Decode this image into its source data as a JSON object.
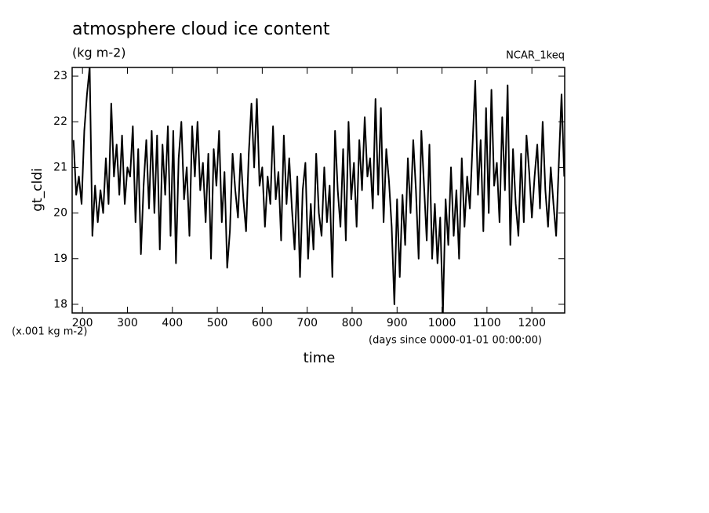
{
  "chart_data": {
    "type": "line",
    "title": "atmosphere cloud ice content",
    "subtitle": "(kg m-2)",
    "annotation": "NCAR_1keq",
    "y_label": "gt_cldi",
    "y_unit": "(x.001 kg m-2)",
    "x_label": "time",
    "x_unit": "(days since 0000-01-01 00:00:00)",
    "xlim": [
      177,
      1273
    ],
    "ylim": [
      17.81,
      23.19
    ],
    "xticks": [
      200,
      300,
      400,
      500,
      600,
      700,
      800,
      900,
      1000,
      1100,
      1200
    ],
    "yticks": [
      18,
      19,
      20,
      21,
      22,
      23
    ],
    "color": "#000000",
    "x": [
      180,
      186,
      192,
      198,
      204,
      210,
      216,
      222,
      228,
      234,
      240,
      246,
      252,
      258,
      264,
      270,
      276,
      282,
      288,
      294,
      300,
      306,
      312,
      318,
      324,
      330,
      336,
      342,
      348,
      354,
      360,
      366,
      372,
      378,
      384,
      390,
      396,
      402,
      408,
      414,
      420,
      426,
      432,
      438,
      444,
      450,
      456,
      462,
      468,
      474,
      480,
      486,
      492,
      498,
      504,
      510,
      516,
      522,
      528,
      534,
      540,
      546,
      552,
      558,
      564,
      570,
      576,
      582,
      588,
      594,
      600,
      606,
      612,
      618,
      624,
      630,
      636,
      642,
      648,
      654,
      660,
      666,
      672,
      678,
      684,
      690,
      696,
      702,
      708,
      714,
      720,
      726,
      732,
      738,
      744,
      750,
      756,
      762,
      768,
      774,
      780,
      786,
      792,
      798,
      804,
      810,
      816,
      822,
      828,
      834,
      840,
      846,
      852,
      858,
      864,
      870,
      876,
      882,
      888,
      894,
      900,
      906,
      912,
      918,
      924,
      930,
      936,
      942,
      948,
      954,
      960,
      966,
      972,
      978,
      984,
      990,
      996,
      1002,
      1008,
      1014,
      1020,
      1026,
      1032,
      1038,
      1044,
      1050,
      1056,
      1062,
      1068,
      1074,
      1080,
      1086,
      1092,
      1098,
      1104,
      1110,
      1116,
      1122,
      1128,
      1134,
      1140,
      1146,
      1152,
      1158,
      1164,
      1170,
      1176,
      1182,
      1188,
      1194,
      1200,
      1206,
      1212,
      1218,
      1224,
      1230,
      1236,
      1242,
      1248,
      1254,
      1260,
      1266,
      1272
    ],
    "values": [
      21.6,
      20.4,
      20.8,
      20.2,
      21.8,
      22.6,
      23.2,
      19.5,
      20.6,
      19.8,
      20.5,
      20.0,
      21.2,
      20.2,
      22.4,
      20.8,
      21.5,
      20.4,
      21.7,
      20.2,
      21.0,
      20.8,
      21.9,
      19.8,
      21.4,
      19.1,
      20.6,
      21.6,
      20.1,
      21.8,
      20.0,
      21.7,
      19.2,
      21.5,
      20.4,
      21.9,
      19.5,
      21.8,
      18.9,
      21.2,
      22.0,
      20.3,
      21.0,
      19.5,
      21.9,
      20.8,
      22.0,
      20.5,
      21.1,
      19.8,
      21.3,
      19.0,
      21.4,
      20.6,
      21.8,
      19.8,
      20.9,
      18.8,
      19.6,
      21.3,
      20.5,
      19.9,
      21.3,
      20.3,
      19.6,
      21.3,
      22.4,
      21.0,
      22.5,
      20.6,
      21.0,
      19.7,
      20.8,
      20.2,
      21.9,
      20.3,
      20.9,
      19.4,
      21.7,
      20.2,
      21.2,
      20.1,
      19.2,
      20.8,
      18.6,
      20.5,
      21.1,
      19.0,
      20.2,
      19.2,
      21.3,
      20.0,
      19.5,
      21.0,
      19.8,
      20.6,
      18.6,
      21.8,
      20.5,
      19.7,
      21.4,
      19.4,
      22.0,
      20.3,
      21.1,
      19.7,
      21.6,
      20.5,
      22.1,
      20.8,
      21.2,
      20.1,
      22.5,
      20.4,
      22.3,
      19.8,
      21.4,
      20.7,
      19.7,
      18.0,
      20.3,
      18.6,
      20.4,
      19.3,
      21.2,
      20.0,
      21.6,
      20.5,
      19.0,
      21.8,
      20.6,
      19.4,
      21.5,
      19.0,
      20.2,
      18.9,
      19.9,
      17.8,
      20.3,
      19.3,
      21.0,
      19.5,
      20.5,
      19.0,
      21.2,
      19.7,
      20.8,
      20.1,
      21.5,
      22.9,
      20.4,
      21.6,
      19.6,
      22.3,
      20.0,
      22.7,
      20.6,
      21.1,
      19.8,
      22.1,
      20.5,
      22.8,
      19.3,
      21.4,
      20.2,
      19.5,
      21.3,
      19.8,
      21.7,
      20.9,
      19.9,
      20.8,
      21.5,
      20.1,
      22.0,
      20.5,
      19.7,
      21.0,
      20.2,
      19.5,
      21.1,
      22.6,
      20.8
    ]
  }
}
